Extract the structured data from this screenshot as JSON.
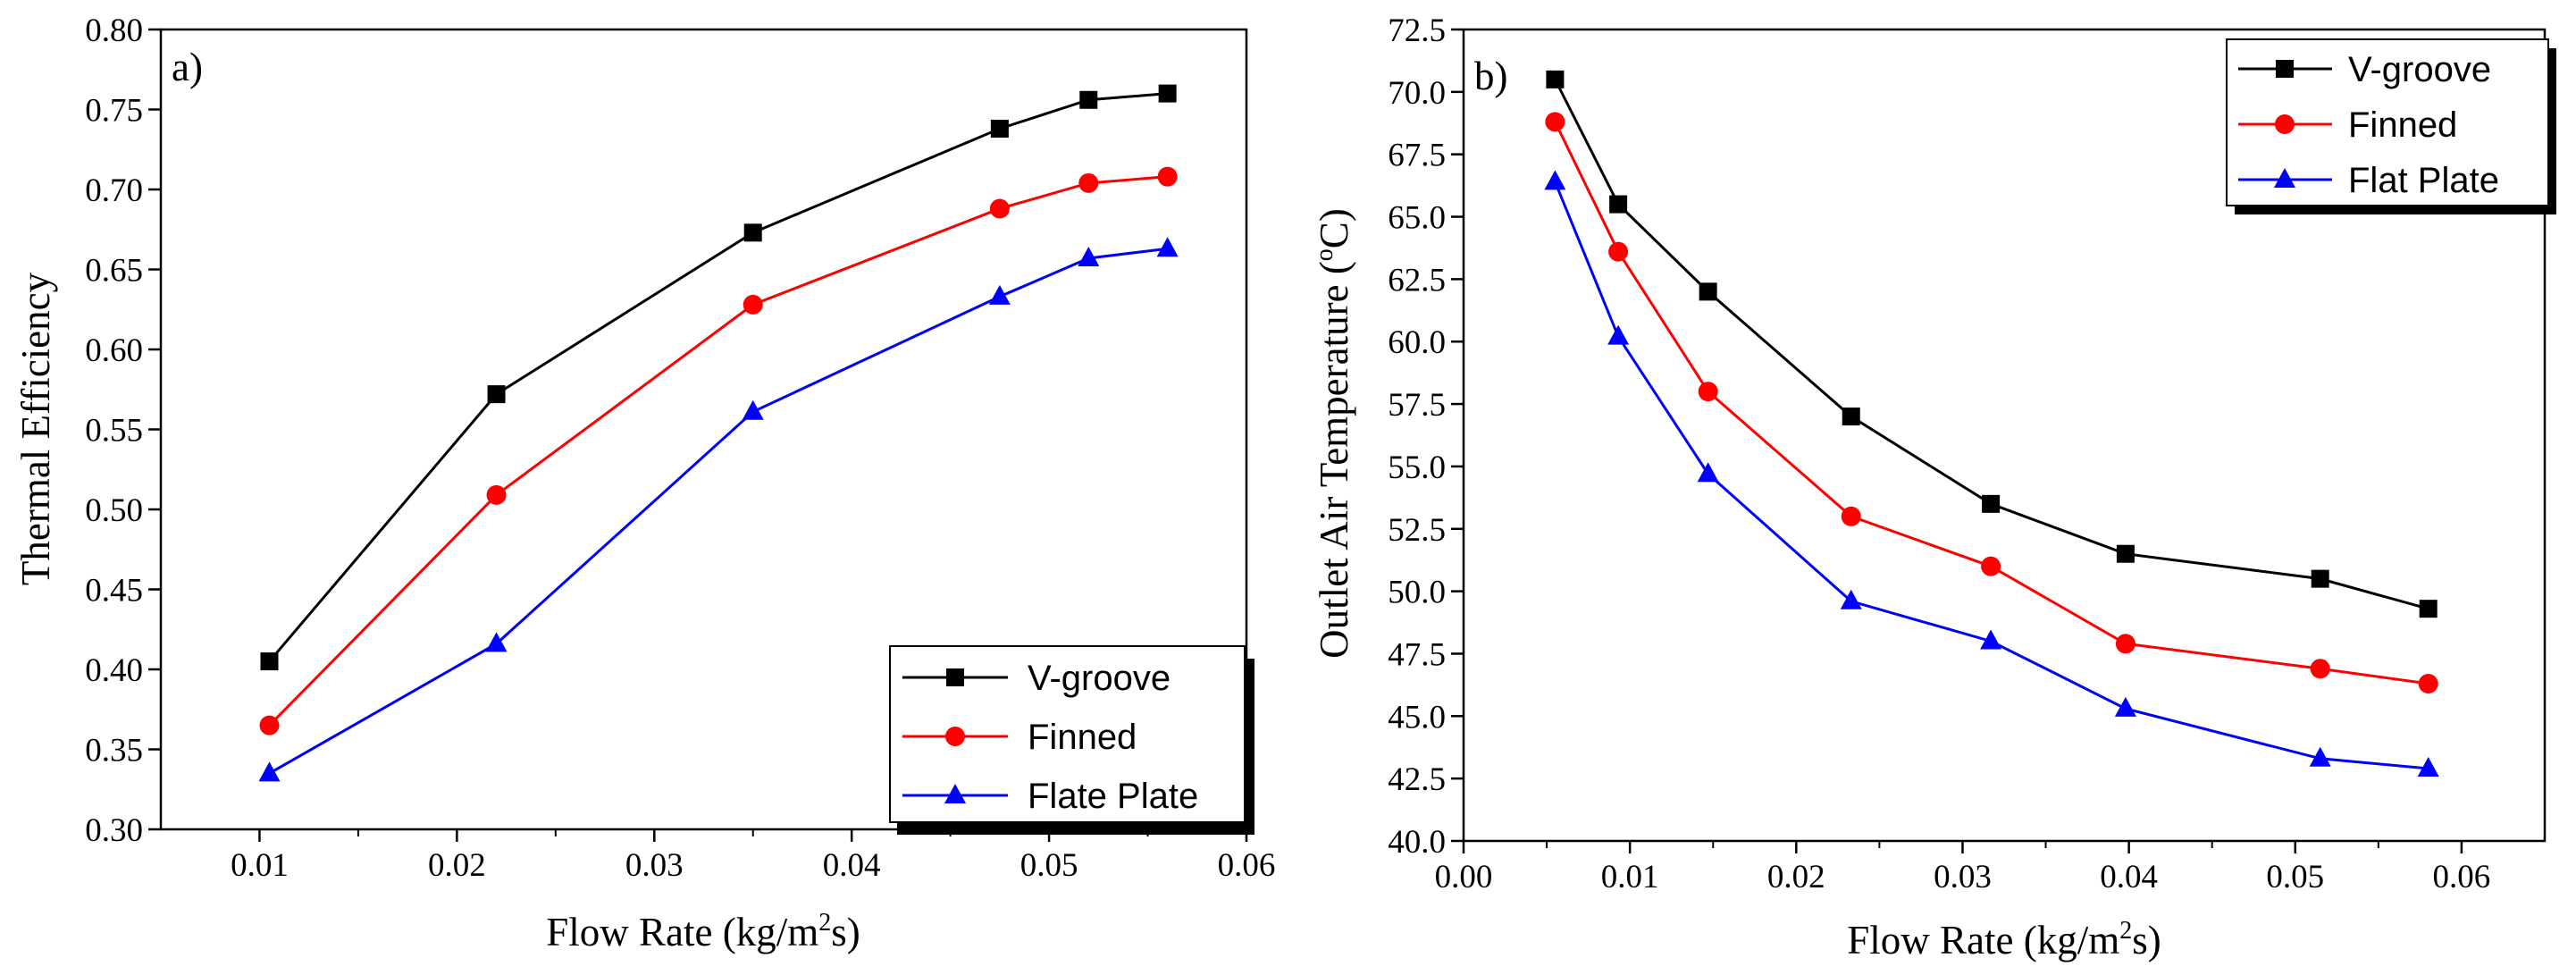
{
  "chart_data": [
    {
      "type": "line",
      "panel_label": "a)",
      "xlabel_main": "Flow Rate (kg/m",
      "xlabel_sup": "2",
      "xlabel_tail": "s)",
      "ylabel": "Thermal Efficiency",
      "xlim": [
        0.005,
        0.06
      ],
      "ylim": [
        0.3,
        0.8
      ],
      "xticks": [
        "0.01",
        "0.02",
        "0.03",
        "0.04",
        "0.05",
        "0.06"
      ],
      "xtick_values": [
        0.01,
        0.02,
        0.03,
        0.04,
        0.05,
        0.06
      ],
      "yticks": [
        "0.30",
        "0.35",
        "0.40",
        "0.45",
        "0.50",
        "0.55",
        "0.60",
        "0.65",
        "0.70",
        "0.75",
        "0.80"
      ],
      "ytick_values": [
        0.3,
        0.35,
        0.4,
        0.45,
        0.5,
        0.55,
        0.6,
        0.65,
        0.7,
        0.75,
        0.8
      ],
      "legend_position": "bottom-right",
      "series": [
        {
          "name": "V-groove",
          "color": "#000000",
          "marker": "square",
          "x": [
            0.0105,
            0.022,
            0.035,
            0.0475,
            0.052,
            0.056
          ],
          "y": [
            0.405,
            0.572,
            0.673,
            0.738,
            0.756,
            0.76
          ]
        },
        {
          "name": "Finned",
          "color": "#ff0000",
          "marker": "circle",
          "x": [
            0.0105,
            0.022,
            0.035,
            0.0475,
            0.052,
            0.056
          ],
          "y": [
            0.365,
            0.509,
            0.628,
            0.688,
            0.704,
            0.708
          ]
        },
        {
          "name": "Flate Plate",
          "color": "#0000ff",
          "marker": "triangle",
          "x": [
            0.0105,
            0.022,
            0.035,
            0.0475,
            0.052,
            0.056
          ],
          "y": [
            0.335,
            0.416,
            0.561,
            0.633,
            0.657,
            0.663
          ]
        }
      ]
    },
    {
      "type": "line",
      "panel_label": "b)",
      "xlabel_main": "Flow Rate (kg/m",
      "xlabel_sup": "2",
      "xlabel_tail": "s)",
      "ylabel_main": "Outlet Air Temperature (",
      "ylabel_sup": "o",
      "ylabel_tail": "C)",
      "xlim": [
        0.0,
        0.065
      ],
      "ylim": [
        40.0,
        72.5
      ],
      "xticks": [
        "0.00",
        "0.01",
        "0.02",
        "0.03",
        "0.04",
        "0.05",
        "0.06"
      ],
      "xtick_values": [
        0.0,
        0.01,
        0.02,
        0.03,
        0.04,
        0.05,
        0.06
      ],
      "yticks": [
        "40.0",
        "42.5",
        "45.0",
        "47.5",
        "50.0",
        "52.5",
        "55.0",
        "57.5",
        "60.0",
        "62.5",
        "65.0",
        "67.5",
        "70.0",
        "72.5"
      ],
      "ytick_values": [
        40.0,
        42.5,
        45.0,
        47.5,
        50.0,
        52.5,
        55.0,
        57.5,
        60.0,
        62.5,
        65.0,
        67.5,
        70.0,
        72.5
      ],
      "legend_position": "top-right",
      "series": [
        {
          "name": "V-groove",
          "color": "#000000",
          "marker": "square",
          "x": [
            0.0055,
            0.0093,
            0.0147,
            0.0233,
            0.0317,
            0.0398,
            0.0515,
            0.058
          ],
          "y": [
            70.5,
            65.5,
            62.0,
            57.0,
            53.5,
            51.5,
            50.5,
            49.3
          ]
        },
        {
          "name": "Finned",
          "color": "#ff0000",
          "marker": "circle",
          "x": [
            0.0055,
            0.0093,
            0.0147,
            0.0233,
            0.0317,
            0.0398,
            0.0515,
            0.058
          ],
          "y": [
            68.8,
            63.6,
            58.0,
            53.0,
            51.0,
            47.9,
            46.9,
            46.3
          ]
        },
        {
          "name": "Flat Plate",
          "color": "#0000ff",
          "marker": "triangle",
          "x": [
            0.0055,
            0.0093,
            0.0147,
            0.0233,
            0.0317,
            0.0398,
            0.0515,
            0.058
          ],
          "y": [
            66.4,
            60.2,
            54.7,
            49.6,
            48.0,
            45.3,
            43.3,
            42.9
          ]
        }
      ]
    }
  ]
}
